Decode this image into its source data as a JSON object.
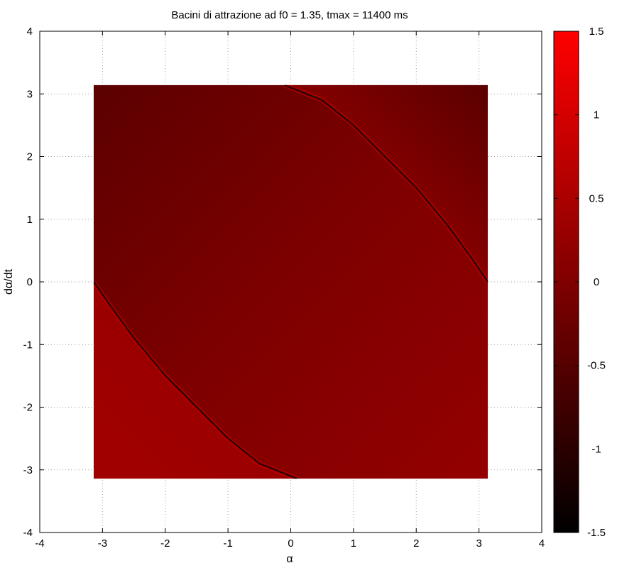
{
  "chart_data": {
    "type": "heatmap",
    "title": "Bacini di attrazione ad f0 = 1.35, tmax = 11400 ms",
    "xlabel": "α",
    "ylabel": "dα/dt",
    "xlim": [
      -4,
      4
    ],
    "ylim": [
      -4,
      4
    ],
    "xticks": [
      "-4",
      "-3",
      "-2",
      "-1",
      "0",
      "1",
      "2",
      "3",
      "4"
    ],
    "yticks": [
      "-4",
      "-3",
      "-2",
      "-1",
      "0",
      "1",
      "2",
      "3",
      "4"
    ],
    "grid": true,
    "data_extent": {
      "x": [
        -3.1416,
        3.1416
      ],
      "y": [
        -3.1416,
        3.1416
      ]
    },
    "colorbar": {
      "range": [
        -1.5,
        1.5
      ],
      "ticks": [
        "1.5",
        "1",
        "0.5",
        "0",
        "-0.5",
        "-1",
        "-1.5"
      ],
      "colormap": [
        "#000000",
        "#ff0000"
      ]
    },
    "basin_boundary": {
      "description_value_range": [
        -0.55,
        0.45
      ],
      "upper_curve": [
        [
          -0.1,
          3.14
        ],
        [
          0.5,
          2.9
        ],
        [
          1.0,
          2.5
        ],
        [
          1.5,
          2.0
        ],
        [
          2.0,
          1.5
        ],
        [
          2.5,
          0.9
        ],
        [
          2.9,
          0.35
        ],
        [
          3.14,
          0.0
        ]
      ],
      "lower_curve": [
        [
          -3.14,
          0.0
        ],
        [
          -2.9,
          -0.35
        ],
        [
          -2.5,
          -0.9
        ],
        [
          -2.0,
          -1.5
        ],
        [
          -1.5,
          -2.0
        ],
        [
          -1.0,
          -2.5
        ],
        [
          -0.5,
          -2.9
        ],
        [
          0.1,
          -3.14
        ]
      ]
    }
  }
}
